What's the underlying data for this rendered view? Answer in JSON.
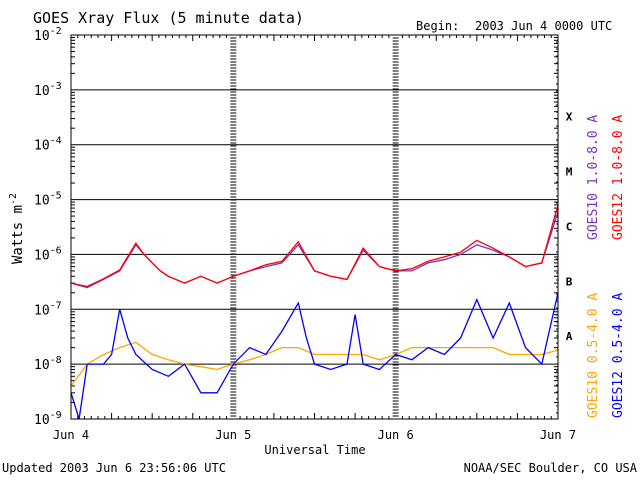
{
  "header": {
    "title": "GOES Xray Flux (5 minute data)",
    "begin_label": "Begin:",
    "begin_value": "2003 Jun 4 0000 UTC"
  },
  "footer": {
    "updated": "Updated 2003 Jun  6 23:56:06 UTC",
    "credit": "NOAA/SEC Boulder, CO USA"
  },
  "chart_data": {
    "type": "line",
    "xlabel": "Universal Time",
    "ylabel": "Watts m",
    "ylabel_exponent": "-2",
    "x_ticks": [
      "Jun 4",
      "Jun 5",
      "Jun 6",
      "Jun 7"
    ],
    "xlim": [
      "2003-06-04T00:00",
      "2003-06-07T00:00"
    ],
    "ylim": [
      1e-09,
      0.01
    ],
    "y_scale": "log",
    "y_tick_base": "10",
    "y_tick_exponents": [
      "-9",
      "-8",
      "-7",
      "-6",
      "-5",
      "-4",
      "-3",
      "-2"
    ],
    "flare_classes": [
      {
        "label": "A",
        "value": 1e-08
      },
      {
        "label": "B",
        "value": 1e-07
      },
      {
        "label": "C",
        "value": 1e-06
      },
      {
        "label": "M",
        "value": 1e-05
      },
      {
        "label": "X",
        "value": 0.0001
      }
    ],
    "grid": "horizontal lines at each decade",
    "series": [
      {
        "name": "GOES10 1.0-8.0 A",
        "color": "#7b2fbf",
        "x": [
          0,
          0.1,
          0.2,
          0.3,
          0.4,
          0.45,
          0.5,
          0.55,
          0.6,
          0.7,
          0.8,
          0.9,
          1.0,
          1.1,
          1.2,
          1.3,
          1.4,
          1.5,
          1.6,
          1.7,
          1.8,
          1.9,
          2.0,
          2.1,
          2.2,
          2.3,
          2.4,
          2.5,
          2.6,
          2.7,
          2.8,
          2.9,
          3.0
        ],
        "y": [
          3e-07,
          2.5e-07,
          3.5e-07,
          5e-07,
          1.5e-06,
          1e-06,
          7e-07,
          5e-07,
          4e-07,
          3e-07,
          4e-07,
          3e-07,
          4e-07,
          5e-07,
          6e-07,
          7e-07,
          1.5e-06,
          5e-07,
          4e-07,
          3.5e-07,
          1.2e-06,
          6e-07,
          5e-07,
          5e-07,
          7e-07,
          8e-07,
          1e-06,
          1.5e-06,
          1.2e-06,
          9e-07,
          6e-07,
          7e-07,
          6e-06
        ]
      },
      {
        "name": "GOES12 1.0-8.0 A",
        "color": "#ff0000",
        "x": [
          0,
          0.1,
          0.2,
          0.3,
          0.4,
          0.45,
          0.5,
          0.55,
          0.6,
          0.7,
          0.8,
          0.9,
          1.0,
          1.1,
          1.2,
          1.3,
          1.4,
          1.5,
          1.6,
          1.7,
          1.8,
          1.9,
          2.0,
          2.1,
          2.2,
          2.3,
          2.4,
          2.5,
          2.6,
          2.7,
          2.8,
          2.9,
          3.0
        ],
        "y": [
          3e-07,
          2.6e-07,
          3.6e-07,
          5.2e-07,
          1.6e-06,
          1e-06,
          7e-07,
          5e-07,
          4e-07,
          3e-07,
          4e-07,
          3e-07,
          4e-07,
          5e-07,
          6.5e-07,
          7.5e-07,
          1.7e-06,
          5e-07,
          4e-07,
          3.5e-07,
          1.3e-06,
          6e-07,
          5e-07,
          5.5e-07,
          7.5e-07,
          9e-07,
          1.1e-06,
          1.8e-06,
          1.3e-06,
          9e-07,
          6e-07,
          7e-07,
          8e-06
        ]
      },
      {
        "name": "GOES10 0.5-4.0 A",
        "color": "#ffa500",
        "x": [
          0,
          0.1,
          0.2,
          0.3,
          0.4,
          0.5,
          0.6,
          0.7,
          0.8,
          0.9,
          1.0,
          1.1,
          1.2,
          1.3,
          1.4,
          1.5,
          1.6,
          1.7,
          1.8,
          1.9,
          2.0,
          2.1,
          2.2,
          2.3,
          2.4,
          2.5,
          2.6,
          2.7,
          2.8,
          2.9,
          3.0
        ],
        "y": [
          4e-09,
          1e-08,
          1.5e-08,
          2e-08,
          2.5e-08,
          1.5e-08,
          1.2e-08,
          1e-08,
          9e-09,
          8e-09,
          1e-08,
          1.2e-08,
          1.5e-08,
          2e-08,
          2e-08,
          1.5e-08,
          1.5e-08,
          1.5e-08,
          1.5e-08,
          1.2e-08,
          1.5e-08,
          2e-08,
          2e-08,
          2e-08,
          2e-08,
          2e-08,
          2e-08,
          1.5e-08,
          1.5e-08,
          1.5e-08,
          1.8e-08
        ]
      },
      {
        "name": "GOES12 0.5-4.0 A",
        "color": "#0000ff",
        "x": [
          0,
          0.05,
          0.1,
          0.2,
          0.25,
          0.3,
          0.35,
          0.4,
          0.5,
          0.6,
          0.7,
          0.8,
          0.9,
          1.0,
          1.1,
          1.2,
          1.3,
          1.4,
          1.45,
          1.5,
          1.6,
          1.7,
          1.75,
          1.8,
          1.9,
          2.0,
          2.1,
          2.2,
          2.3,
          2.4,
          2.5,
          2.6,
          2.7,
          2.8,
          2.9,
          3.0
        ],
        "y": [
          3e-09,
          1e-09,
          1e-08,
          1e-08,
          1.5e-08,
          1e-07,
          3e-08,
          1.5e-08,
          8e-09,
          6e-09,
          1e-08,
          3e-09,
          3e-09,
          1e-08,
          2e-08,
          1.5e-08,
          4e-08,
          1.3e-07,
          3e-08,
          1e-08,
          8e-09,
          1e-08,
          8e-08,
          1e-08,
          8e-09,
          1.5e-08,
          1.2e-08,
          2e-08,
          1.5e-08,
          3e-08,
          1.5e-07,
          3e-08,
          1.3e-07,
          2e-08,
          1e-08,
          2e-07
        ]
      }
    ]
  }
}
